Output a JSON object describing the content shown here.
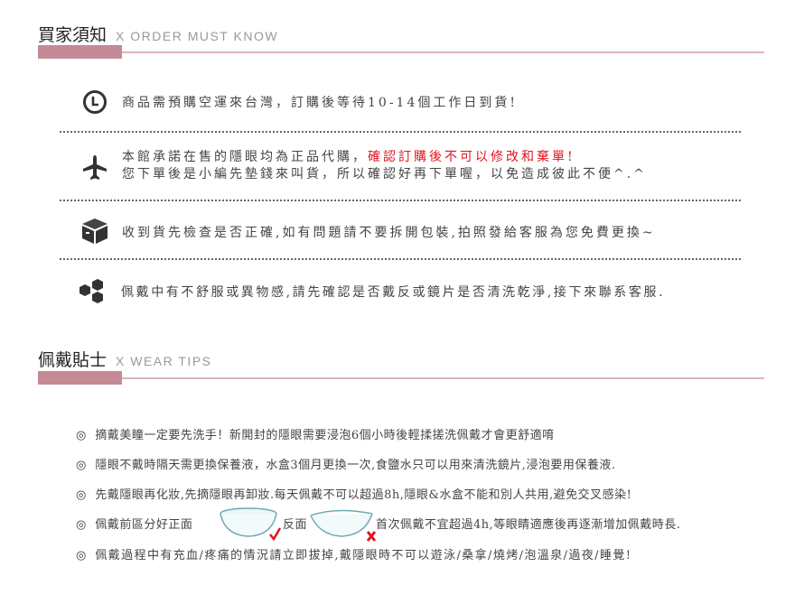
{
  "order_section": {
    "title": "買家須知",
    "subtitle": "X  ORDER MUST KNOW",
    "items": [
      {
        "icon": "clock-icon",
        "text": "商品需預購空運來台灣，訂購後等待10-14個工作日到貨!"
      },
      {
        "icon": "airplane-icon",
        "text": "本館承諾在售的隱眼均為正品代購，",
        "highlight": "確認訂購後不可以修改和棄單!",
        "text2": "您下單後是小編先墊錢來叫貨，所以確認好再下單喔，以免造成彼此不便^.^"
      },
      {
        "icon": "box-icon",
        "text": "收到貨先檢查是否正確,如有問題請不要拆開包裝,拍照發給客服為您免費更換~"
      },
      {
        "icon": "cubes-icon",
        "text": "佩戴中有不舒服或異物感,請先確認是否戴反或鏡片是否清洗乾淨,接下來聯系客服."
      }
    ],
    "highlight_color": "#e0141e"
  },
  "wear_section": {
    "title": "佩戴貼士",
    "subtitle": "X  WEAR TIPS",
    "bullet": "◎",
    "tips": [
      {
        "text": "摘戴美瞳一定要先洗手！新開封的隱眼需要浸泡6個小時後輕揉搓洗佩戴才會更舒適唷"
      },
      {
        "text": "隱眼不戴時隔天需更換保養液，水盒3個月更換一次,食鹽水只可以用來清洗鏡片,浸泡要用保養液."
      },
      {
        "text": "先戴隱眼再化妝,先摘隱眼再卸妝.每天佩戴不可以超過8h,隱眼&水盒不能和別人共用,避免交叉感染!"
      },
      {
        "text_a": "佩戴前區分好正面",
        "text_b": "反面",
        "text_c": "首次佩戴不宜超過4h,等眼睛適應後再逐漸增加佩戴時長."
      },
      {
        "text": "佩戴過程中有充血/疼痛的情況請立即拔掉,戴隱眼時不可以遊泳/桑拿/燒烤/泡溫泉/過夜/睡覺!"
      }
    ]
  },
  "accent_color": "#c48a95"
}
